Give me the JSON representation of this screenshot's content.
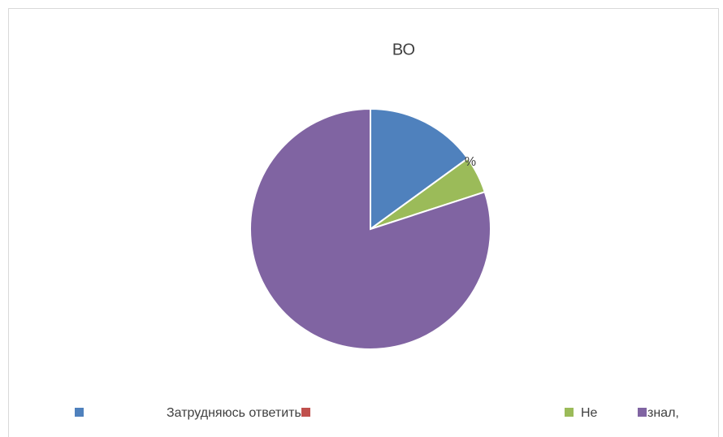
{
  "chart_data": {
    "type": "pie",
    "title": "ВО",
    "categories": [
      "Затрудняюсь ответить.",
      null,
      "Не",
      "знал,"
    ],
    "values": [
      15,
      0,
      5,
      80
    ],
    "colors": [
      "#4f81bd",
      "#c0504d",
      "#9bbb59",
      "#8064a2"
    ],
    "annotations": [
      {
        "text": "%"
      }
    ],
    "legend": "bottom"
  }
}
